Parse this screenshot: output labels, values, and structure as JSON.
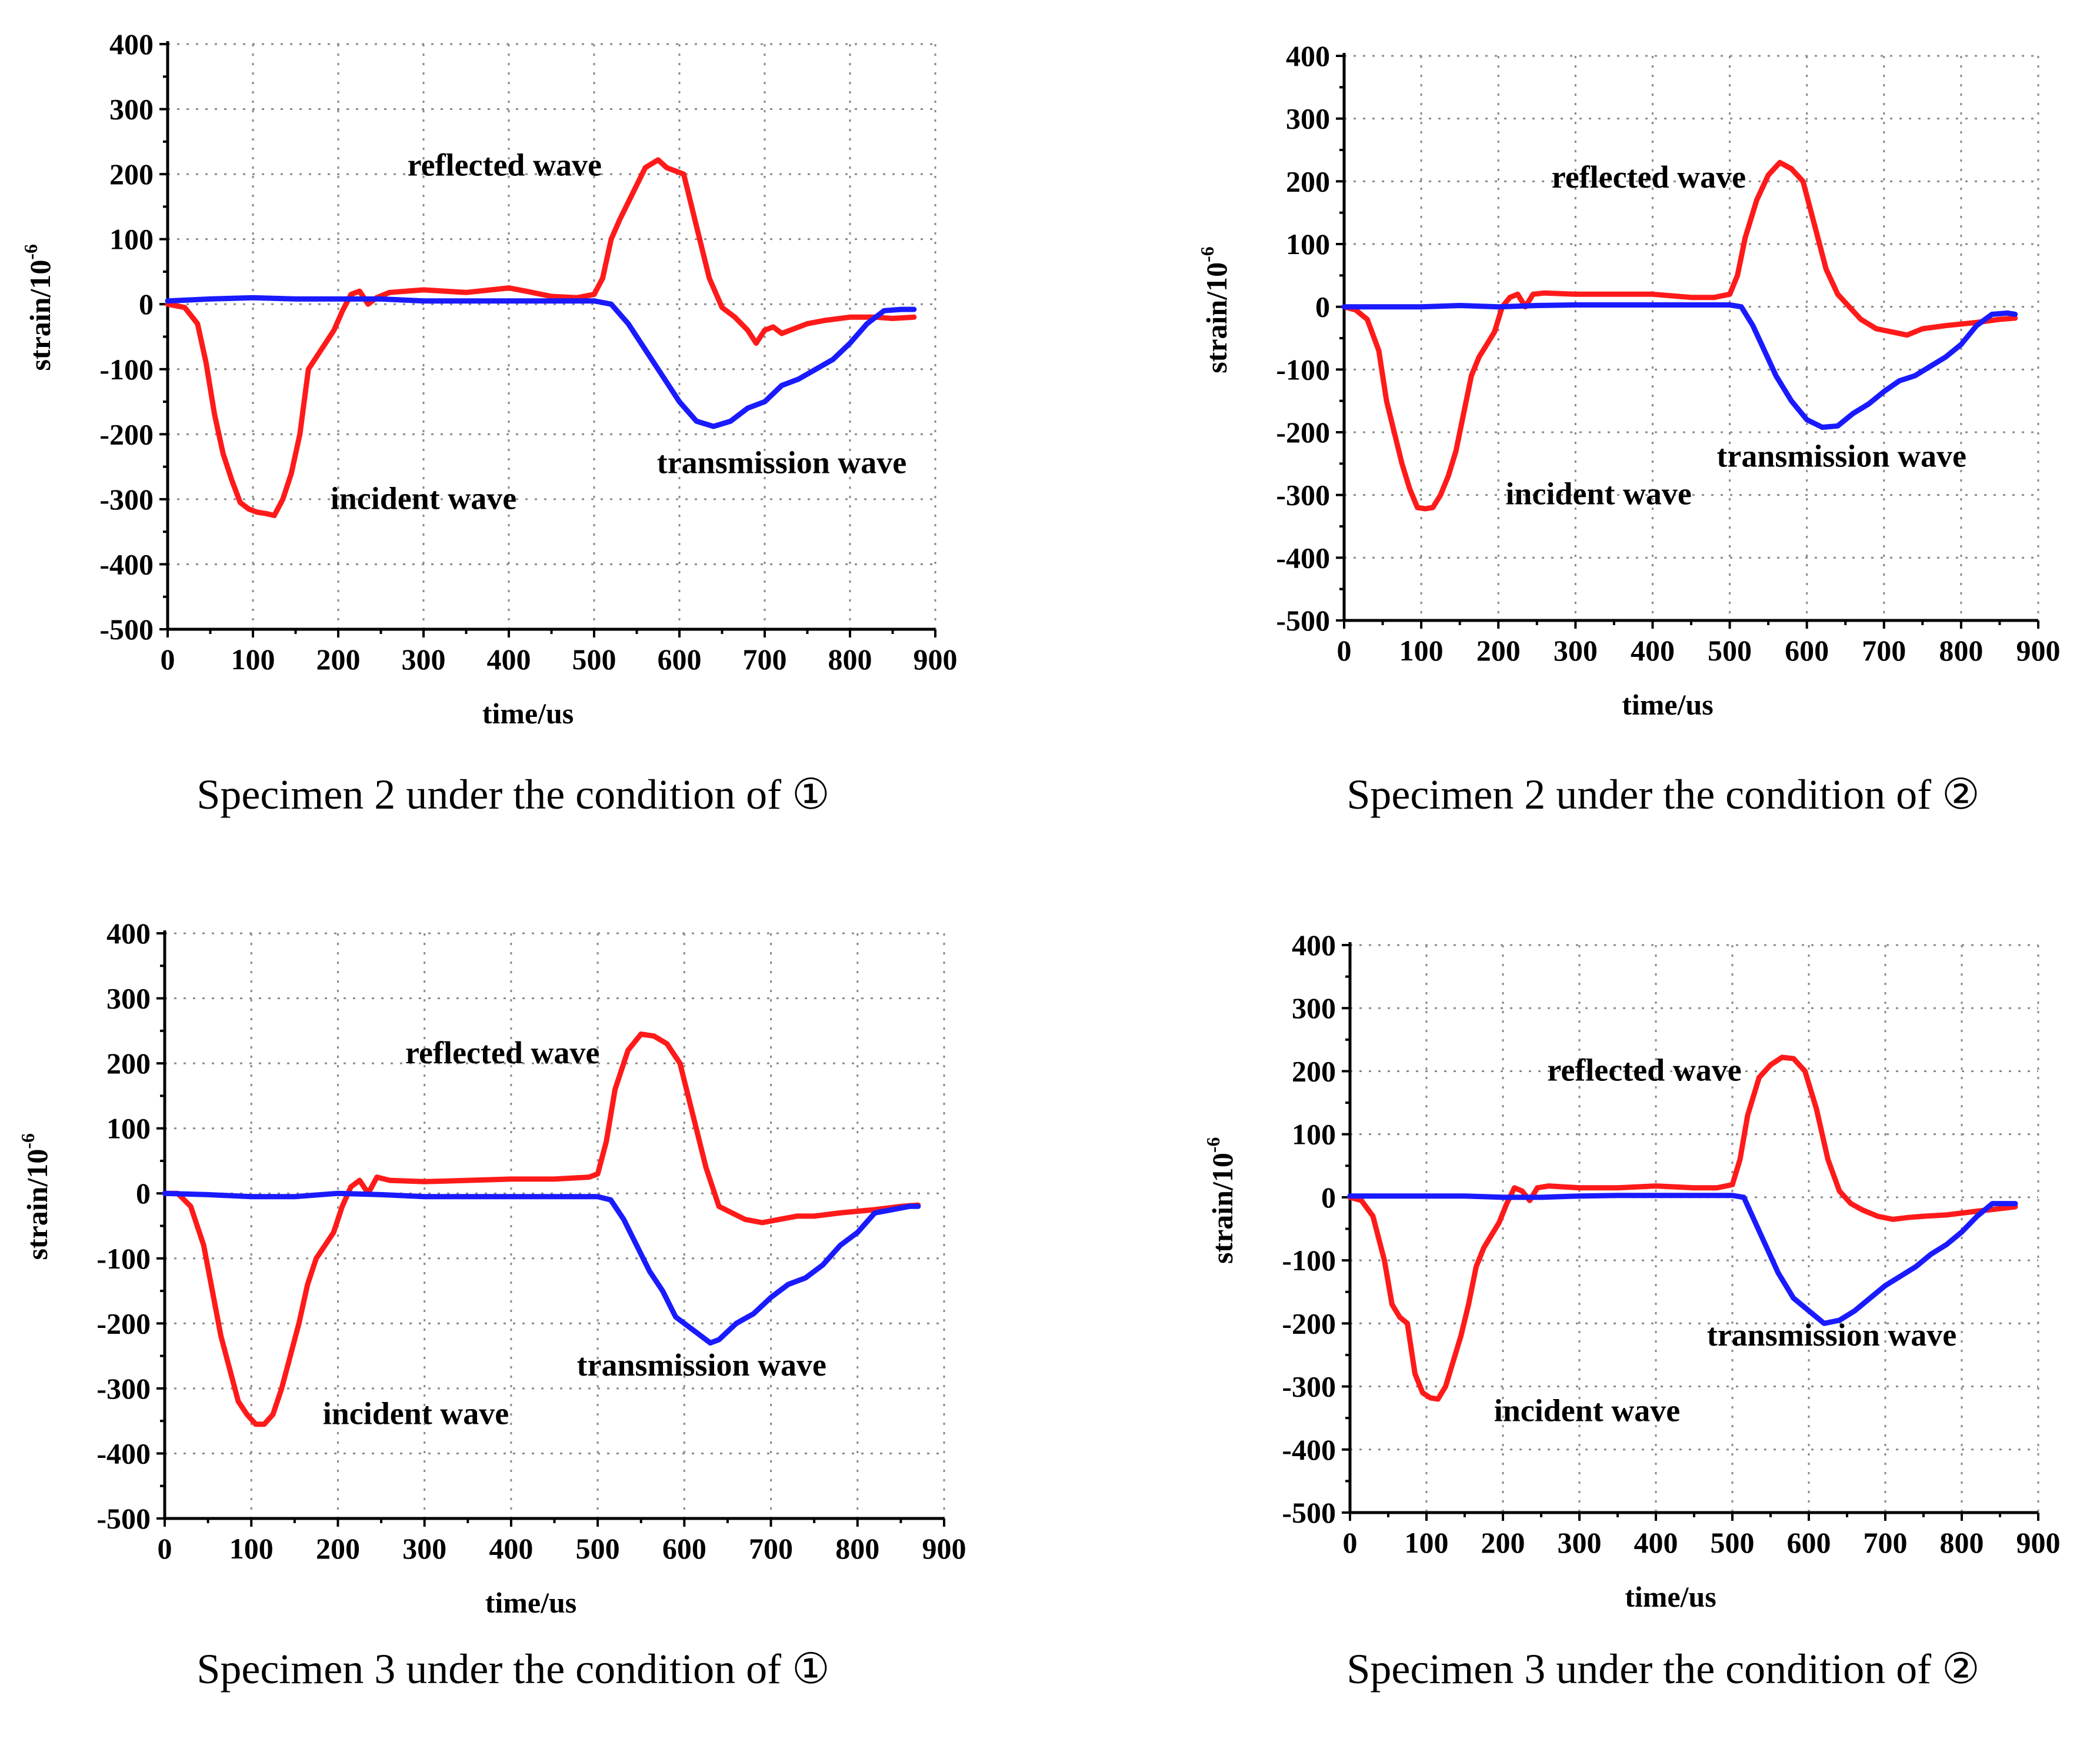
{
  "colors": {
    "reflected_incident": "#ff1a1a",
    "transmission": "#1a1aff",
    "grid": "#8a8a8a",
    "axis": "#000000"
  },
  "chart_data": [
    {
      "type": "line",
      "caption": "Specimen 2 under the condition of ①",
      "xlabel": "time/us",
      "ylabel": "strain/10",
      "ylabel_superscript": "-6",
      "xlim": [
        0,
        900
      ],
      "ylim": [
        -500,
        400
      ],
      "xticks": [
        "0",
        "100",
        "200",
        "300",
        "400",
        "500",
        "600",
        "700",
        "800",
        "900"
      ],
      "yticks": [
        "400",
        "300",
        "200",
        "100",
        "0",
        "-100",
        "-200",
        "-300",
        "-400",
        "-500"
      ],
      "grid": true,
      "annotations": [
        {
          "id": "reflected",
          "text": "reflected wave",
          "x": 395,
          "y": 198
        },
        {
          "id": "incident",
          "text": "incident wave",
          "x": 300,
          "y": -315
        },
        {
          "id": "transmission",
          "text": "transmission wave",
          "x": 720,
          "y": -260
        }
      ],
      "series": [
        {
          "name": "incident/reflected wave",
          "color": "#ff1a1a",
          "x": [
            0,
            20,
            35,
            45,
            55,
            65,
            75,
            85,
            95,
            105,
            115,
            125,
            135,
            145,
            155,
            165,
            175,
            185,
            195,
            205,
            215,
            225,
            235,
            245,
            260,
            300,
            350,
            400,
            420,
            450,
            480,
            500,
            510,
            520,
            530,
            545,
            560,
            575,
            585,
            595,
            605,
            620,
            635,
            650,
            665,
            680,
            690,
            700,
            710,
            720,
            730,
            750,
            770,
            800,
            830,
            850,
            875
          ],
          "y": [
            0,
            -5,
            -30,
            -90,
            -170,
            -230,
            -270,
            -305,
            -315,
            -320,
            -322,
            -325,
            -300,
            -260,
            -200,
            -100,
            -80,
            -60,
            -40,
            -10,
            15,
            20,
            0,
            10,
            18,
            22,
            18,
            25,
            20,
            12,
            10,
            15,
            40,
            100,
            130,
            170,
            210,
            222,
            210,
            205,
            200,
            120,
            40,
            -5,
            -20,
            -40,
            -60,
            -40,
            -35,
            -45,
            -40,
            -30,
            -25,
            -20,
            -20,
            -22,
            -20
          ]
        },
        {
          "name": "transmission wave",
          "color": "#1a1aff",
          "x": [
            0,
            50,
            100,
            150,
            200,
            250,
            300,
            350,
            400,
            450,
            500,
            520,
            540,
            560,
            580,
            600,
            620,
            640,
            660,
            680,
            700,
            720,
            740,
            760,
            780,
            800,
            820,
            840,
            860,
            875
          ],
          "y": [
            5,
            8,
            10,
            8,
            8,
            8,
            5,
            5,
            5,
            5,
            5,
            0,
            -30,
            -70,
            -110,
            -150,
            -180,
            -188,
            -180,
            -160,
            -150,
            -125,
            -115,
            -100,
            -85,
            -60,
            -30,
            -10,
            -8,
            -8
          ]
        }
      ]
    },
    {
      "type": "line",
      "caption": "Specimen 2 under the condition of ②",
      "xlabel": "time/us",
      "ylabel": "strain/10",
      "ylabel_superscript": "-6",
      "xlim": [
        0,
        900
      ],
      "ylim": [
        -500,
        400
      ],
      "xticks": [
        "0",
        "100",
        "200",
        "300",
        "400",
        "500",
        "600",
        "700",
        "800",
        "900"
      ],
      "yticks": [
        "400",
        "300",
        "200",
        "100",
        "0",
        "-100",
        "-200",
        "-300",
        "-400",
        "-500"
      ],
      "grid": true,
      "annotations": [
        {
          "id": "reflected",
          "text": "reflected wave",
          "x": 395,
          "y": 190
        },
        {
          "id": "incident",
          "text": "incident wave",
          "x": 330,
          "y": -315
        },
        {
          "id": "transmission",
          "text": "transmission wave",
          "x": 645,
          "y": -255
        }
      ],
      "series": [
        {
          "name": "incident/reflected wave",
          "color": "#ff1a1a",
          "x": [
            0,
            15,
            30,
            45,
            55,
            65,
            75,
            85,
            95,
            105,
            115,
            125,
            135,
            145,
            155,
            165,
            175,
            185,
            195,
            205,
            215,
            225,
            235,
            245,
            260,
            300,
            350,
            400,
            450,
            480,
            500,
            510,
            520,
            535,
            550,
            565,
            580,
            595,
            610,
            625,
            640,
            655,
            670,
            690,
            710,
            730,
            750,
            780,
            820,
            850,
            870
          ],
          "y": [
            0,
            -5,
            -20,
            -70,
            -150,
            -200,
            -250,
            -290,
            -320,
            -322,
            -320,
            -300,
            -270,
            -230,
            -170,
            -110,
            -80,
            -60,
            -40,
            0,
            15,
            20,
            0,
            20,
            22,
            20,
            20,
            20,
            15,
            15,
            20,
            50,
            110,
            170,
            210,
            230,
            220,
            200,
            130,
            60,
            20,
            0,
            -20,
            -35,
            -40,
            -45,
            -35,
            -30,
            -25,
            -20,
            -18
          ]
        },
        {
          "name": "transmission wave",
          "color": "#1a1aff",
          "x": [
            0,
            50,
            100,
            150,
            200,
            250,
            300,
            350,
            400,
            450,
            500,
            515,
            530,
            545,
            560,
            580,
            600,
            620,
            640,
            660,
            680,
            700,
            720,
            740,
            760,
            780,
            800,
            820,
            840,
            860,
            870
          ],
          "y": [
            0,
            0,
            0,
            2,
            0,
            2,
            3,
            3,
            3,
            3,
            3,
            0,
            -30,
            -70,
            -110,
            -150,
            -180,
            -192,
            -190,
            -170,
            -155,
            -135,
            -118,
            -110,
            -95,
            -80,
            -60,
            -30,
            -12,
            -10,
            -12
          ]
        }
      ]
    },
    {
      "type": "line",
      "caption": "Specimen 3 under the condition of ①",
      "xlabel": "time/us",
      "ylabel": "strain/10",
      "ylabel_superscript": "-6",
      "xlim": [
        0,
        900
      ],
      "ylim": [
        -500,
        400
      ],
      "xticks": [
        "0",
        "100",
        "200",
        "300",
        "400",
        "500",
        "600",
        "700",
        "800",
        "900"
      ],
      "yticks": [
        "400",
        "300",
        "200",
        "100",
        "0",
        "-100",
        "-200",
        "-300",
        "-400",
        "-500"
      ],
      "grid": true,
      "annotations": [
        {
          "id": "reflected",
          "text": "reflected wave",
          "x": 390,
          "y": 200
        },
        {
          "id": "incident",
          "text": "incident wave",
          "x": 290,
          "y": -355
        },
        {
          "id": "transmission",
          "text": "transmission wave",
          "x": 620,
          "y": -280
        }
      ],
      "series": [
        {
          "name": "incident/reflected wave",
          "color": "#ff1a1a",
          "x": [
            0,
            15,
            30,
            45,
            55,
            65,
            75,
            85,
            95,
            105,
            115,
            125,
            135,
            145,
            155,
            165,
            175,
            185,
            195,
            205,
            215,
            225,
            235,
            245,
            260,
            300,
            350,
            400,
            450,
            490,
            500,
            510,
            520,
            535,
            550,
            565,
            580,
            595,
            610,
            625,
            640,
            655,
            670,
            690,
            710,
            730,
            750,
            780,
            820,
            850,
            870
          ],
          "y": [
            0,
            0,
            -20,
            -80,
            -150,
            -220,
            -270,
            -320,
            -340,
            -355,
            -355,
            -340,
            -300,
            -250,
            -200,
            -140,
            -100,
            -80,
            -60,
            -20,
            10,
            20,
            0,
            25,
            20,
            18,
            20,
            22,
            22,
            25,
            30,
            80,
            160,
            220,
            245,
            242,
            230,
            200,
            120,
            40,
            -20,
            -30,
            -40,
            -45,
            -40,
            -35,
            -35,
            -30,
            -25,
            -20,
            -18
          ]
        },
        {
          "name": "transmission wave",
          "color": "#1a1aff",
          "x": [
            0,
            50,
            100,
            150,
            200,
            250,
            300,
            350,
            400,
            450,
            500,
            515,
            530,
            545,
            560,
            575,
            590,
            610,
            630,
            640,
            660,
            680,
            700,
            720,
            740,
            760,
            780,
            800,
            820,
            840,
            860,
            870
          ],
          "y": [
            0,
            -2,
            -5,
            -5,
            0,
            -2,
            -5,
            -5,
            -5,
            -5,
            -5,
            -10,
            -40,
            -80,
            -120,
            -150,
            -190,
            -210,
            -230,
            -225,
            -200,
            -185,
            -160,
            -140,
            -130,
            -110,
            -80,
            -60,
            -30,
            -25,
            -20,
            -20
          ]
        }
      ]
    },
    {
      "type": "line",
      "caption": "Specimen 3 under the condition of ②",
      "xlabel": "time/us",
      "ylabel": "strain/10",
      "ylabel_superscript": "-6",
      "xlim": [
        0,
        900
      ],
      "ylim": [
        -500,
        400
      ],
      "xticks": [
        "0",
        "100",
        "200",
        "300",
        "400",
        "500",
        "600",
        "700",
        "800",
        "900"
      ],
      "yticks": [
        "400",
        "300",
        "200",
        "100",
        "0",
        "-100",
        "-200",
        "-300",
        "-400",
        "-500"
      ],
      "grid": true,
      "annotations": [
        {
          "id": "reflected",
          "text": "reflected wave",
          "x": 385,
          "y": 185
        },
        {
          "id": "incident",
          "text": "incident wave",
          "x": 310,
          "y": -355
        },
        {
          "id": "transmission",
          "text": "transmission wave",
          "x": 630,
          "y": -235
        }
      ],
      "series": [
        {
          "name": "incident/reflected wave",
          "color": "#ff1a1a",
          "x": [
            0,
            15,
            30,
            45,
            55,
            65,
            75,
            85,
            95,
            105,
            115,
            125,
            135,
            145,
            155,
            165,
            175,
            185,
            195,
            205,
            215,
            225,
            235,
            245,
            260,
            300,
            350,
            400,
            450,
            480,
            500,
            510,
            520,
            535,
            550,
            565,
            580,
            595,
            610,
            625,
            640,
            655,
            670,
            690,
            710,
            730,
            750,
            780,
            820,
            850,
            870
          ],
          "y": [
            0,
            -5,
            -30,
            -100,
            -170,
            -190,
            -200,
            -280,
            -310,
            -318,
            -320,
            -300,
            -260,
            -220,
            -170,
            -110,
            -80,
            -60,
            -40,
            -10,
            15,
            10,
            -5,
            15,
            18,
            15,
            15,
            18,
            15,
            15,
            20,
            60,
            130,
            190,
            210,
            222,
            220,
            200,
            140,
            60,
            10,
            -10,
            -20,
            -30,
            -35,
            -32,
            -30,
            -28,
            -22,
            -18,
            -15
          ]
        },
        {
          "name": "transmission wave",
          "color": "#1a1aff",
          "x": [
            0,
            50,
            100,
            150,
            200,
            250,
            300,
            350,
            400,
            450,
            500,
            515,
            530,
            545,
            560,
            580,
            600,
            620,
            640,
            660,
            680,
            700,
            720,
            740,
            760,
            780,
            800,
            820,
            840,
            860,
            870
          ],
          "y": [
            2,
            2,
            2,
            2,
            0,
            0,
            2,
            3,
            3,
            3,
            3,
            0,
            -40,
            -80,
            -120,
            -160,
            -180,
            -200,
            -195,
            -180,
            -160,
            -140,
            -125,
            -110,
            -90,
            -75,
            -55,
            -30,
            -10,
            -10,
            -10
          ]
        }
      ]
    }
  ]
}
